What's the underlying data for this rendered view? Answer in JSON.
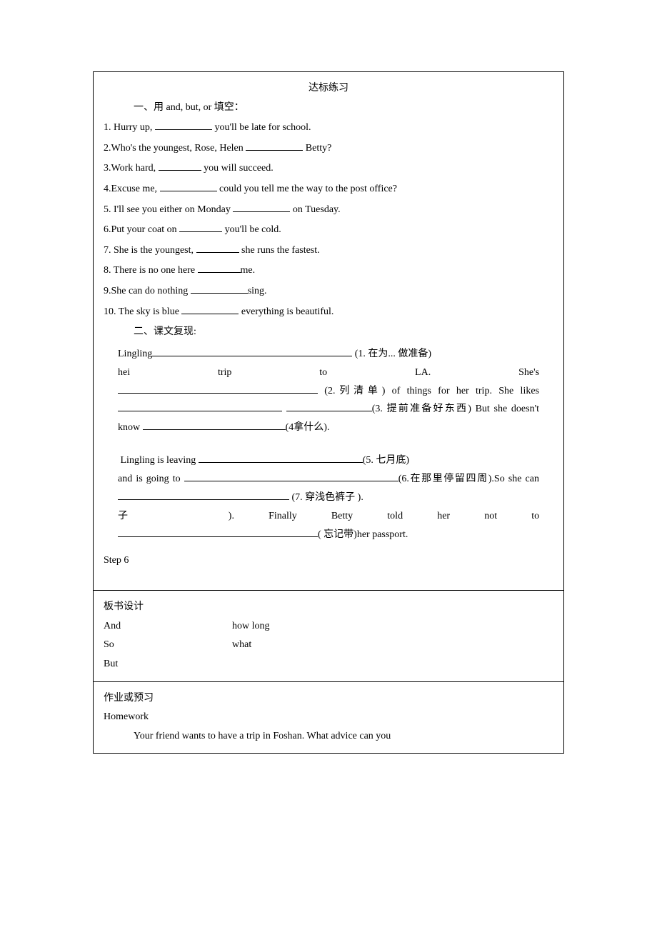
{
  "section1": {
    "title": "达标练习",
    "heading": "一、用 and, but, or 填空：",
    "questions": [
      {
        "pre": "1. Hurry up, ",
        "post": " you'll be late for school.",
        "blank": "med"
      },
      {
        "pre": "2.Who's the youngest, Rose, Helen ",
        "post": " Betty?",
        "blank": "med"
      },
      {
        "pre": "3.Work hard, ",
        "post": " you will succeed.",
        "blank": "short"
      },
      {
        "pre": "4.Excuse me, ",
        "post": " could you tell me the way to the post office?",
        "blank": "med"
      },
      {
        "pre": "5. I'll see you either on Monday ",
        "post": " on Tuesday.",
        "blank": "med"
      },
      {
        "pre": "6.Put your coat on ",
        "post": " you'll be cold.",
        "blank": "short"
      },
      {
        "pre": "7. She is the youngest, ",
        "post": " she runs the fastest.",
        "blank": "short"
      },
      {
        "pre": "8. There is no one here ",
        "post": "me.",
        "blank": "short"
      },
      {
        "pre": "9.She can do nothing ",
        "post": "sing.",
        "blank": "med"
      },
      {
        "pre": "10. The sky is blue ",
        "post": " everything is beautiful.",
        "blank": "med"
      }
    ],
    "heading2": "二、课文复现:",
    "passage1": {
      "l1a": "Lingling",
      "l1b": " (1. 在为... 做准备)",
      "l2": "hei",
      "l2b": "trip",
      "l2c": "to",
      "l2d": "LA.",
      "l2e": "She's",
      "l3a": " (2.列清单)   of things for her trip. She likes ",
      "l3b": " ",
      "l3c": "(3. 提前准备好东西) But she doesn't know ",
      "l3d": "(4拿什么)."
    },
    "passage2": {
      "l1a": "Lingling is leaving ",
      "l1b": "(5. 七月底)",
      "l2a": "and is going to ",
      "l2b": "(6.在那里停留四周).So she can ",
      "l2c": " (7. 穿浅色裤子 ).",
      "l3a": "Finally",
      "l3b": "Betty",
      "l3c": "told",
      "l3d": "her",
      "l3e": "not",
      "l3f": "to",
      "l4a": "( 忘记带)her passport."
    },
    "step": "Step 6"
  },
  "board": {
    "title": "板书设计",
    "rows": [
      {
        "left": "And",
        "right": "how long"
      },
      {
        "left": "So",
        "right": "what"
      },
      {
        "left": "But",
        "right": ""
      }
    ]
  },
  "homework": {
    "title": "作业或预习",
    "label": "Homework",
    "text": "Your friend wants to have a trip in Foshan. What advice can you"
  },
  "colors": {
    "text": "#000000",
    "background": "#ffffff",
    "border": "#000000"
  },
  "typography": {
    "font_family": "SimSun",
    "body_fontsize_pt": 11,
    "line_height": 1.9
  }
}
